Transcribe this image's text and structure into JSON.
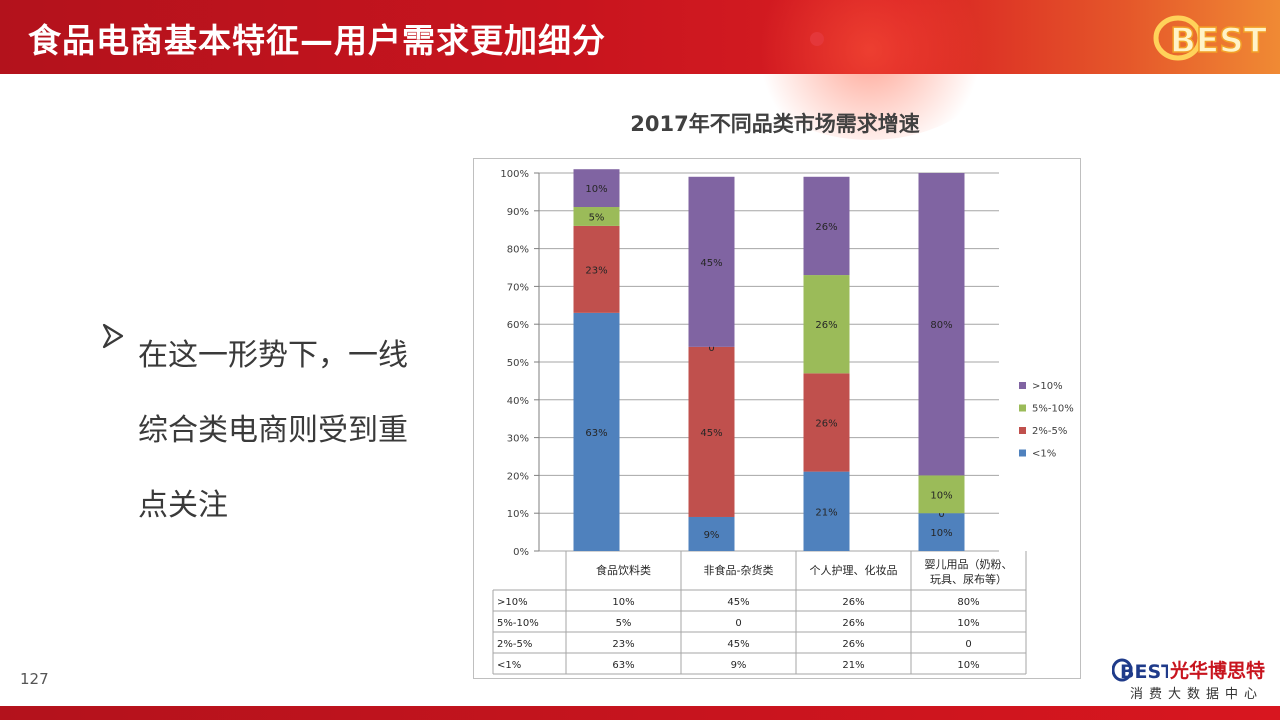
{
  "slide": {
    "title": "食品电商基本特征—用户需求更加细分",
    "page_number": "127",
    "bullet_text": "在这一形势下，一线综合类电商则受到重点关注",
    "brand_badge": "BEST",
    "logo_name": "光华博思特",
    "logo_sub": "消费大数据中心",
    "colors": {
      "header_red": "#c8141e",
      "accent": "#f08a34"
    }
  },
  "chart_data": {
    "type": "bar",
    "stacked": true,
    "percent": true,
    "title": "2017年不同品类市场需求增速",
    "categories": [
      "食品饮料类",
      "非食品-杂货类",
      "个人护理、化妆品",
      "婴儿用品（奶粉、玩具、尿布等）"
    ],
    "series": [
      {
        "name": "<1%",
        "color": "#4f81bd",
        "values": [
          63,
          9,
          21,
          10
        ]
      },
      {
        "name": "2%-5%",
        "color": "#c0504d",
        "values": [
          23,
          45,
          26,
          0
        ]
      },
      {
        "name": "5%-10%",
        "color": "#9bbb59",
        "values": [
          5,
          0,
          26,
          10
        ]
      },
      {
        "name": ">10%",
        "color": "#8064a2",
        "values": [
          10,
          45,
          26,
          80
        ]
      }
    ],
    "y_ticks": [
      "0%",
      "10%",
      "20%",
      "30%",
      "40%",
      "50%",
      "60%",
      "70%",
      "80%",
      "90%",
      "100%"
    ],
    "ylim": [
      0,
      100
    ],
    "grid": true,
    "legend": "right",
    "table": {
      "row_labels": [
        ">10%",
        "5%-10%",
        "2%-5%",
        "<1%"
      ],
      "rows": [
        [
          "10%",
          "45%",
          "26%",
          "80%"
        ],
        [
          "5%",
          "0",
          "26%",
          "10%"
        ],
        [
          "23%",
          "45%",
          "26%",
          "0"
        ],
        [
          "63%",
          "9%",
          "21%",
          "10%"
        ]
      ]
    }
  }
}
